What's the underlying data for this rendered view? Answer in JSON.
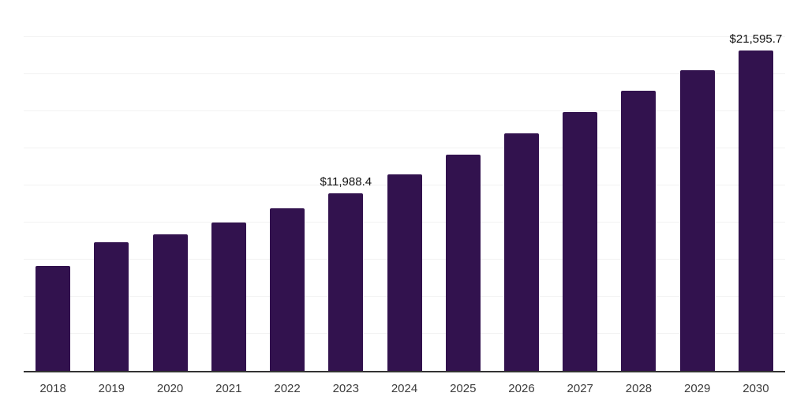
{
  "chart_data": {
    "type": "bar",
    "title": "",
    "xlabel": "",
    "ylabel": "",
    "categories": [
      "2018",
      "2019",
      "2020",
      "2021",
      "2022",
      "2023",
      "2024",
      "2025",
      "2026",
      "2027",
      "2028",
      "2029",
      "2030"
    ],
    "values": [
      7060,
      8680,
      9210,
      9990,
      10950,
      11988.4,
      13230,
      14600,
      16020,
      17440,
      18870,
      20280,
      21595.7
    ],
    "value_labels": [
      "",
      "",
      "",
      "",
      "",
      "$11,988.4",
      "",
      "",
      "",
      "",
      "",
      "",
      "$21,595.7"
    ],
    "ylim": [
      0,
      25000
    ],
    "gridline_interval": 2500,
    "grid": "horizontal",
    "legend": "none",
    "colors": {
      "bar": "#32124E",
      "gridline": "#F2F2F2",
      "axis_line": "#333333",
      "value_label_text": "#111111",
      "tick_label_text": "#3C3C3C",
      "background": "#FFFFFF"
    }
  }
}
